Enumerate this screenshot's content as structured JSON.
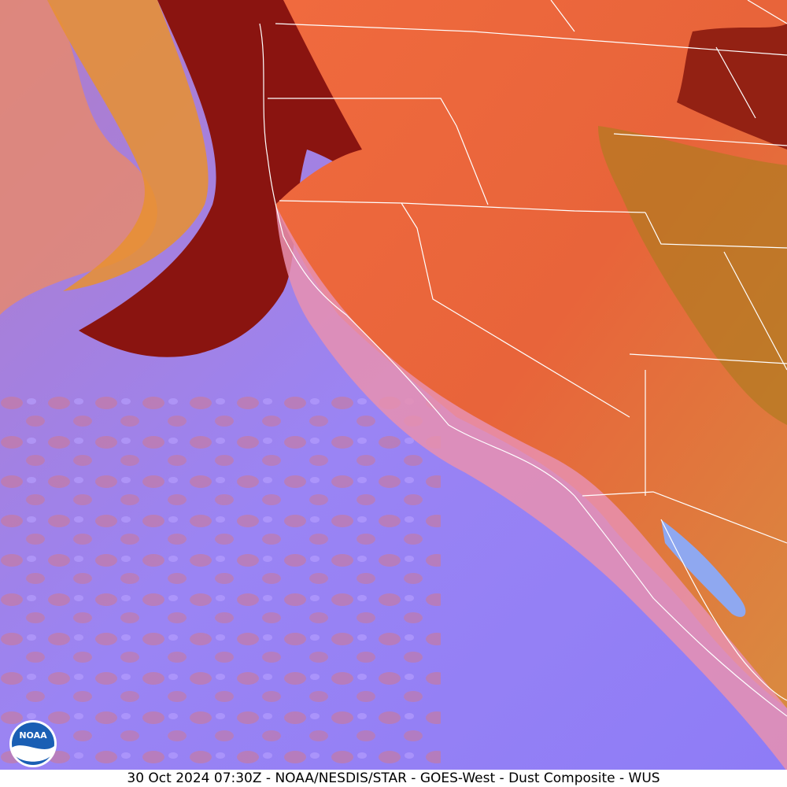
{
  "caption": "30 Oct 2024 07:30Z - NOAA/NESDIS/STAR - GOES-West - Dust Composite - WUS",
  "logo": {
    "text": "NOAA"
  }
}
